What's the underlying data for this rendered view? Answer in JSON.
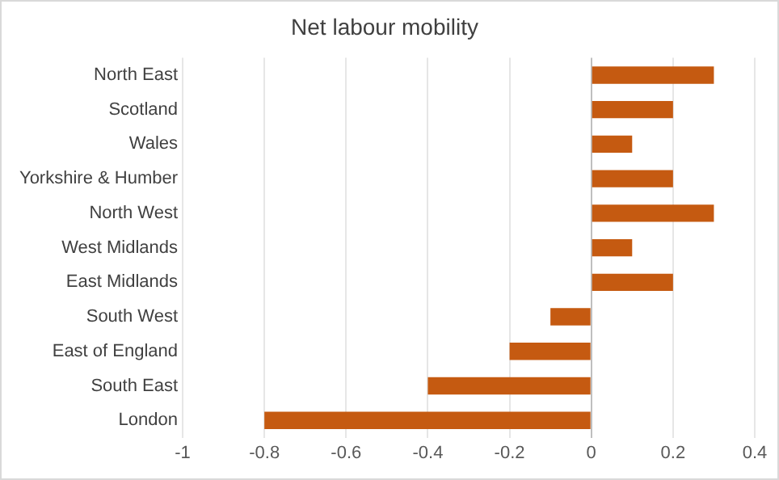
{
  "chart_data": {
    "type": "bar",
    "orientation": "horizontal",
    "title": "Net labour mobility",
    "categories": [
      "North East",
      "Scotland",
      "Wales",
      "Yorkshire & Humber",
      "North West",
      "West Midlands",
      "East Midlands",
      "South West",
      "East of England",
      "South East",
      "London"
    ],
    "values": [
      0.3,
      0.2,
      0.1,
      0.2,
      0.3,
      0.1,
      0.2,
      -0.1,
      -0.2,
      -0.4,
      -0.8
    ],
    "color": "#c55a11",
    "xlim": [
      -1,
      0.4
    ],
    "xticks": [
      -1,
      -0.8,
      -0.6,
      -0.4,
      -0.2,
      0,
      0.2,
      0.4
    ],
    "grid": "x",
    "legend": false
  }
}
